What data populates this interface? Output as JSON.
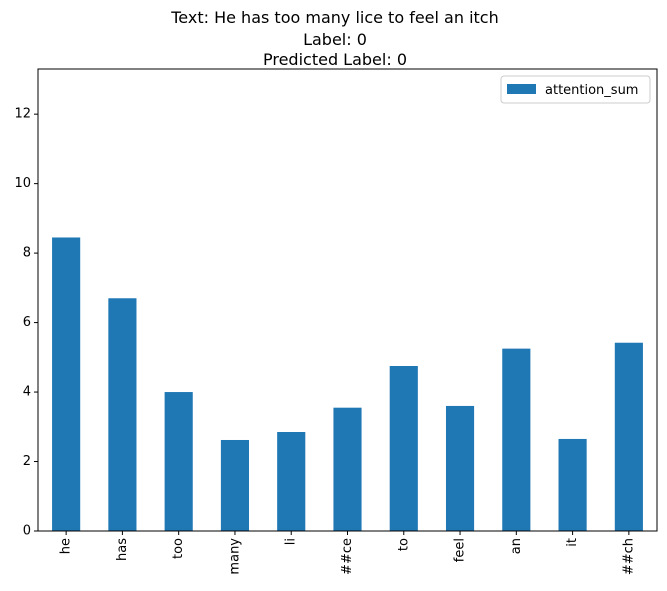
{
  "chart_data": {
    "type": "bar",
    "title_lines": [
      "Text: He has too many lice to feel an itch",
      "Label: 0",
      "Predicted Label: 0"
    ],
    "xlabel": "",
    "ylabel": "",
    "categories": [
      "he",
      "has",
      "too",
      "many",
      "li",
      "##ce",
      "to",
      "feel",
      "an",
      "it",
      "##ch"
    ],
    "series": [
      {
        "name": "attention_sum",
        "values": [
          8.45,
          6.7,
          4.0,
          2.62,
          2.85,
          3.55,
          4.75,
          3.6,
          5.25,
          2.65,
          5.42
        ],
        "color": "#1f77b4"
      }
    ],
    "ylim": [
      0,
      13.3
    ],
    "yticks": [
      0,
      2,
      4,
      6,
      8,
      10,
      12
    ],
    "grid": false,
    "legend_position": "top-right"
  }
}
